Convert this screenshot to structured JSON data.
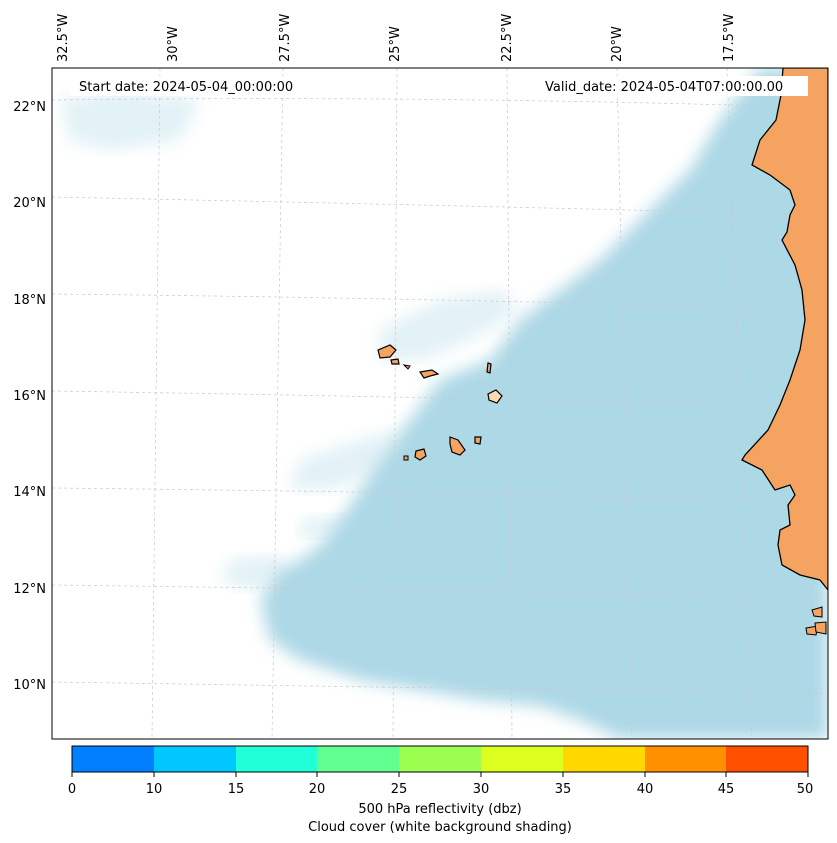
{
  "map": {
    "start_date": "Start date: 2024-05-04_00:00:00",
    "valid_date": "Valid_date: 2024-05-04T07:00:00.00",
    "lon_labels": [
      "32.5°W",
      "30°W",
      "27.5°W",
      "25°W",
      "22.5°W",
      "20°W",
      "17.5°W"
    ],
    "lat_labels": [
      "22°N",
      "20°N",
      "18°N",
      "16°N",
      "14°N",
      "12°N",
      "10°N"
    ],
    "land_color": "#f4a460",
    "sea_cloud_color": "#add8e6",
    "grid_color": "#c8c8c8"
  },
  "colorbar": {
    "ticks": [
      "0",
      "10",
      "15",
      "20",
      "25",
      "30",
      "35",
      "40",
      "45",
      "50"
    ],
    "colors": [
      "#0080ff",
      "#00c8ff",
      "#20ffd8",
      "#60ff90",
      "#9cff50",
      "#dcff20",
      "#ffd800",
      "#ff9000",
      "#ff5000"
    ],
    "label": "500 hPa reflectivity (dbz)",
    "sublabel": "Cloud cover (white background shading)"
  }
}
